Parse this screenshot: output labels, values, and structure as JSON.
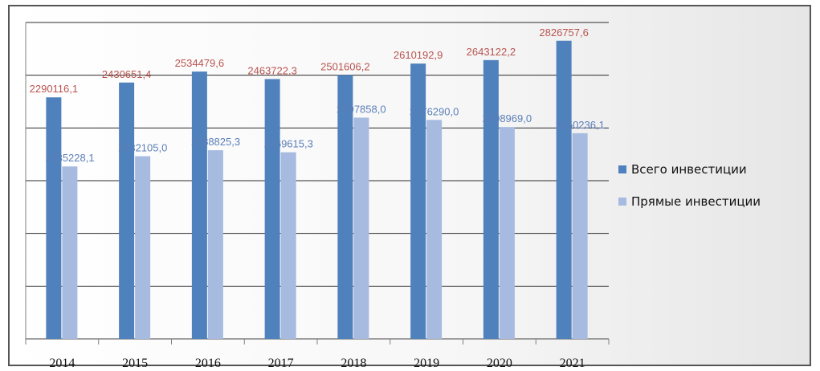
{
  "chart_data": {
    "type": "bar",
    "categories": [
      "2014",
      "2015",
      "2016",
      "2017",
      "2018",
      "2019",
      "2020",
      "2021"
    ],
    "series": [
      {
        "name": "Всего инвестиции",
        "values": [
          2290116.1,
          2430651.4,
          2534479.6,
          2463722.3,
          2501606.2,
          2610192.9,
          2643122.2,
          2826757.6
        ],
        "labels": [
          "2290116,1",
          "2430651,4",
          "2534479,6",
          "2463722,3",
          "2501606,2",
          "2610192,9",
          "2643122,2",
          "2826757,6"
        ],
        "color": "#4f81bd",
        "label_color": "#b85450"
      },
      {
        "name": "Прямые инвестиции",
        "values": [
          1635228.1,
          1732105.0,
          1788825.3,
          1769615.3,
          2097858.0,
          2076290.0,
          2008969.0,
          1950236.1
        ],
        "labels": [
          "1635228,1",
          "1732105,0",
          "1788825,3",
          "1769615,3",
          "2097858,0",
          "2076290,0",
          "2008969,0",
          "1950236,1"
        ],
        "color": "#a7bbe0",
        "label_color": "#5b7fb8"
      }
    ],
    "ylim": [
      0,
      3000000
    ],
    "grid": true,
    "legend_position": "right"
  }
}
